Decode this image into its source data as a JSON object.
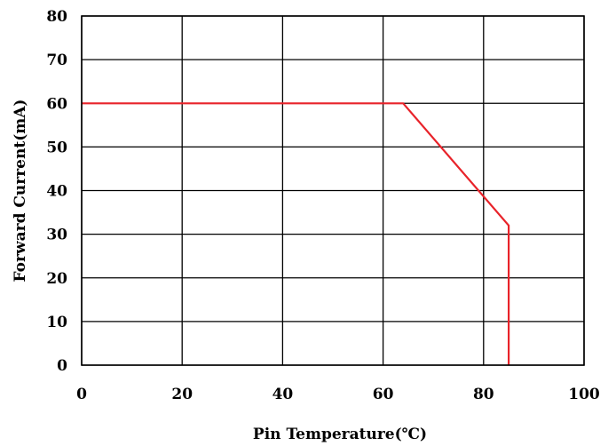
{
  "chart_data": {
    "type": "line",
    "xlabel": "Pin Temperature(℃)",
    "ylabel": "Forward Current(mA)",
    "xlim": [
      0,
      100
    ],
    "ylim": [
      0,
      80
    ],
    "x_ticks": [
      0,
      20,
      40,
      60,
      80,
      100
    ],
    "y_ticks": [
      0,
      10,
      20,
      30,
      40,
      50,
      60,
      70,
      80
    ],
    "grid": true,
    "colors": {
      "series": "#e8232a",
      "grid": "#000000"
    },
    "series": [
      {
        "points": [
          [
            0,
            60
          ],
          [
            64,
            60
          ],
          [
            85,
            32
          ],
          [
            85,
            0
          ]
        ]
      }
    ]
  }
}
